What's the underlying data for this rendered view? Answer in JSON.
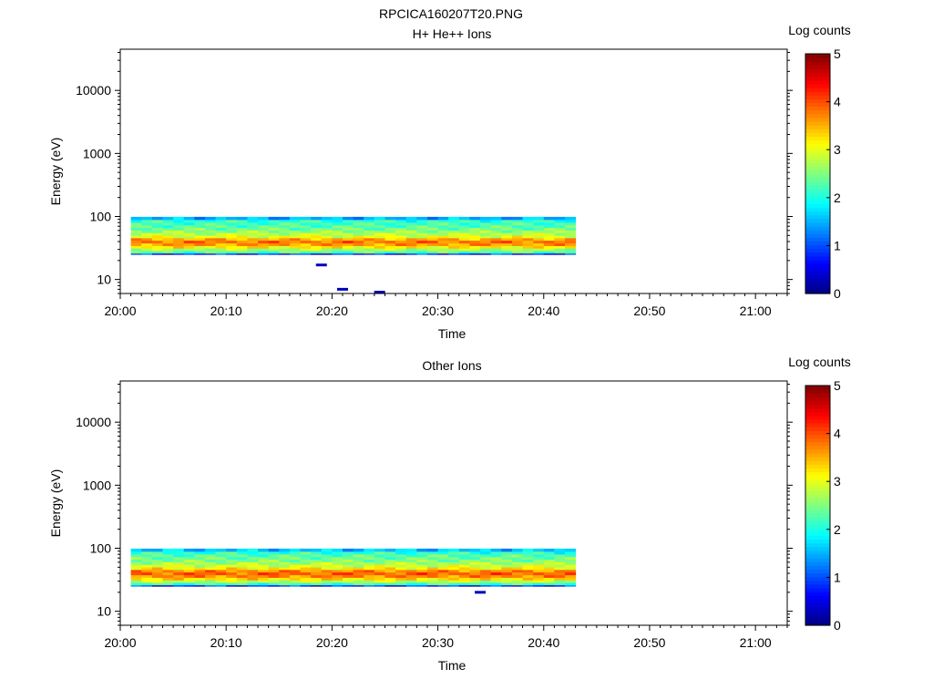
{
  "figure_title": "RPCICA160207T20.PNG",
  "chart_data": [
    {
      "type": "heatmap",
      "title": "H+ He++ Ions",
      "xlabel": "Time",
      "ylabel": "Energy (eV)",
      "x_tick_labels": [
        "20:00",
        "20:10",
        "20:20",
        "20:30",
        "20:40",
        "20:50",
        "21:00"
      ],
      "x_range": [
        "20:00",
        "21:03"
      ],
      "y_scale": "log",
      "y_range": [
        6,
        45000
      ],
      "y_tick_labels": [
        "10",
        "100",
        "1000",
        "10000"
      ],
      "colorbar": {
        "label": "Log counts",
        "range": [
          0,
          5
        ],
        "tick_labels": [
          "0",
          "1",
          "2",
          "3",
          "4",
          "5"
        ],
        "colormap": "jet"
      },
      "data_time_range": [
        "20:01",
        "20:43"
      ],
      "energy_bins_eV": [
        25,
        27.5,
        30,
        33,
        36,
        40,
        44,
        48,
        53,
        58,
        64,
        70,
        77,
        85,
        94
      ],
      "profile_log_counts": [
        0.8,
        2.3,
        2.7,
        3.2,
        3.6,
        3.8,
        3.5,
        3.0,
        2.8,
        2.6,
        2.4,
        2.3,
        2.2,
        2.1,
        1.5
      ],
      "peak_energy_eV": 40,
      "peak_log_counts": 3.8,
      "low_energy_hits": [
        {
          "time": "20:19",
          "energy_eV": 17,
          "log_counts": 0.3
        },
        {
          "time": "20:21",
          "energy_eV": 7,
          "log_counts": 0.3
        },
        {
          "time": "20:24.5",
          "energy_eV": 6.3,
          "log_counts": 0.3
        }
      ]
    },
    {
      "type": "heatmap",
      "title": "Other Ions",
      "xlabel": "Time",
      "ylabel": "Energy (eV)",
      "x_tick_labels": [
        "20:00",
        "20:10",
        "20:20",
        "20:30",
        "20:40",
        "20:50",
        "21:00"
      ],
      "x_range": [
        "20:00",
        "21:03"
      ],
      "y_scale": "log",
      "y_range": [
        6,
        45000
      ],
      "y_tick_labels": [
        "10",
        "100",
        "1000",
        "10000"
      ],
      "colorbar": {
        "label": "Log counts",
        "range": [
          0,
          5
        ],
        "tick_labels": [
          "0",
          "1",
          "2",
          "3",
          "4",
          "5"
        ],
        "colormap": "jet"
      },
      "data_time_range": [
        "20:01",
        "20:43"
      ],
      "energy_bins_eV": [
        25,
        27.5,
        30,
        33,
        36,
        40,
        44,
        48,
        53,
        58,
        64,
        70,
        77,
        85,
        94
      ],
      "profile_log_counts": [
        0.8,
        2.2,
        2.8,
        3.3,
        3.7,
        3.9,
        3.7,
        3.2,
        2.9,
        2.7,
        2.5,
        2.4,
        2.3,
        2.1,
        1.6
      ],
      "peak_energy_eV": 40,
      "peak_log_counts": 3.9,
      "low_energy_hits": [
        {
          "time": "20:34",
          "energy_eV": 20,
          "log_counts": 0.3
        }
      ]
    }
  ]
}
